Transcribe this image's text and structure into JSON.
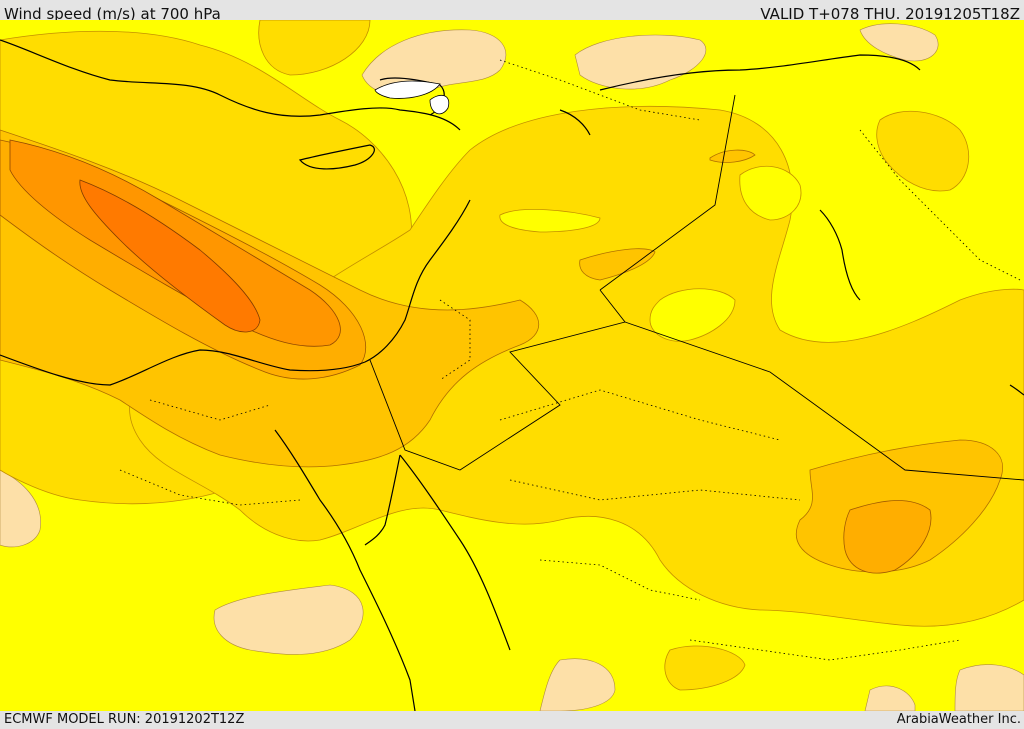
{
  "header": {
    "title": "Wind speed (m/s) at 700 hPa",
    "valid": "VALID T+078 THU. 20191205T18Z"
  },
  "footer": {
    "model_run": "ECMWF MODEL RUN: 20191202T12Z",
    "credit": "ArabiaWeather Inc."
  },
  "map": {
    "colors": {
      "light": "#fde0a8",
      "yellow": "#ffff00",
      "gold": "#ffdd00",
      "orange_light": "#ffc400",
      "orange": "#ffae00",
      "orange_dark": "#ff9600",
      "orange_max": "#ff7a00",
      "white": "#ffffff"
    }
  }
}
